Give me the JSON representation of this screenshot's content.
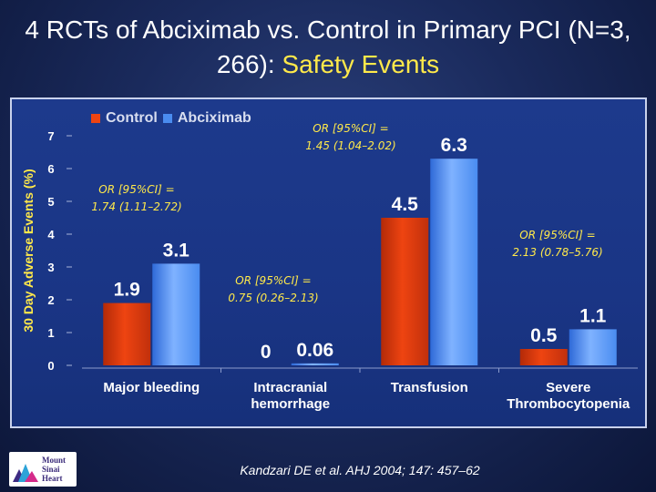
{
  "title": {
    "main": "4 RCTs of Abciximab vs. Control in Primary PCI (N=3, 266):",
    "accent": "Safety Events"
  },
  "citation": "Kandzari DE et al. AHJ 2004; 147: 457–62",
  "logo": {
    "text": [
      "Mount",
      "Sinai",
      "Heart"
    ]
  },
  "colors": {
    "control": "#ee4411",
    "abciximab": "#4a8cf0",
    "accent": "#ffe94a"
  },
  "chart_data": {
    "type": "bar",
    "ylabel": "30 Day Adverse Events (%)",
    "ylim": [
      0,
      7
    ],
    "yticks": [
      0,
      1,
      2,
      3,
      4,
      5,
      6,
      7
    ],
    "grid": false,
    "legend_position": "top-left",
    "categories": [
      [
        "Major bleeding"
      ],
      [
        "Intracranial",
        "hemorrhage"
      ],
      [
        "Transfusion"
      ],
      [
        "Severe",
        "Thrombocytopenia"
      ]
    ],
    "series": [
      {
        "name": "Control",
        "values": [
          1.9,
          0,
          4.5,
          0.5
        ],
        "labels": [
          "1.9",
          "0",
          "4.5",
          "0.5"
        ]
      },
      {
        "name": "Abciximab",
        "values": [
          3.1,
          0.06,
          6.3,
          1.1
        ],
        "labels": [
          "3.1",
          "0.06",
          "6.3",
          "1.1"
        ]
      }
    ],
    "annotations": [
      {
        "category": "Major bleeding",
        "lines": [
          "OR [95%CI] =",
          "1.74 (1.11–2.72)"
        ]
      },
      {
        "category": "Intracranial hemorrhage",
        "lines": [
          "OR [95%CI] =",
          "0.75 (0.26–2.13)"
        ]
      },
      {
        "category": "Transfusion",
        "lines": [
          "OR [95%CI] =",
          "1.45 (1.04–2.02)"
        ]
      },
      {
        "category": "Severe Thrombocytopenia",
        "lines": [
          "OR [95%CI] =",
          "2.13 (0.78–5.76)"
        ]
      }
    ]
  }
}
